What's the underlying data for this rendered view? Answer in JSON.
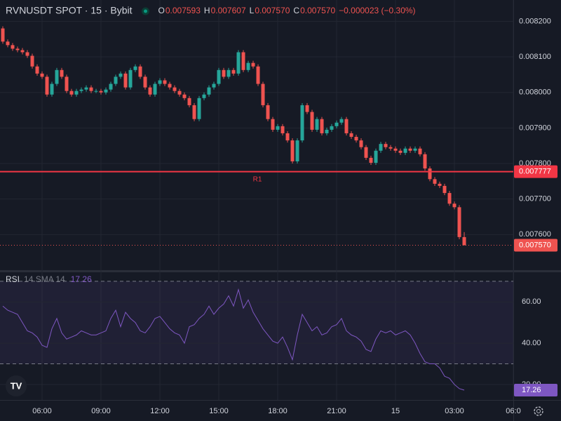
{
  "header": {
    "symbol": "RVNUSDT SPOT · 15 · Bybit",
    "o_label": "O",
    "o": "0.007593",
    "h_label": "H",
    "h": "0.007607",
    "l_label": "L",
    "l": "0.007570",
    "c_label": "C",
    "c": "0.007570",
    "change": "−0.000023 (−0.30%)"
  },
  "chart_data": [
    {
      "type": "candlestick",
      "up_color": "#26a69a",
      "down_color": "#ef5350",
      "grid": true,
      "xlim": [
        3.857,
        30
      ],
      "ylim": [
        0.0075,
        0.00826
      ],
      "xticks": [
        {
          "value": 6,
          "label": "06:00"
        },
        {
          "value": 9,
          "label": "09:00"
        },
        {
          "value": 12,
          "label": "12:00"
        },
        {
          "value": 15,
          "label": "15:00"
        },
        {
          "value": 18,
          "label": "18:00"
        },
        {
          "value": 21,
          "label": "21:00"
        },
        {
          "value": 24,
          "label": "15"
        },
        {
          "value": 27,
          "label": "03:00"
        },
        {
          "value": 30,
          "label": "06:0"
        }
      ],
      "yticks": [
        {
          "value": 0.0076,
          "label": "0.007600"
        },
        {
          "value": 0.0077,
          "label": "0.007700"
        },
        {
          "value": 0.0078,
          "label": "0.007800"
        },
        {
          "value": 0.0079,
          "label": "0.007900"
        },
        {
          "value": 0.008,
          "label": "0.008000"
        },
        {
          "value": 0.0081,
          "label": "0.008100"
        },
        {
          "value": 0.0082,
          "label": "0.008200"
        }
      ],
      "hlines": [
        {
          "name": "R1",
          "value": 0.007777,
          "label": "0.007777",
          "color": "#f23645"
        }
      ],
      "last_price_label": "0.007570",
      "x": [
        4,
        4.25,
        4.5,
        4.75,
        5,
        5.25,
        5.5,
        5.75,
        6,
        6.25,
        6.5,
        6.75,
        7,
        7.25,
        7.5,
        7.75,
        8,
        8.25,
        8.5,
        8.75,
        9,
        9.25,
        9.5,
        9.75,
        10,
        10.25,
        10.5,
        10.75,
        11,
        11.25,
        11.5,
        11.75,
        12,
        12.25,
        12.5,
        12.75,
        13,
        13.25,
        13.5,
        13.75,
        14,
        14.25,
        14.5,
        14.75,
        15,
        15.25,
        15.5,
        15.75,
        16,
        16.25,
        16.5,
        16.75,
        17,
        17.25,
        17.5,
        17.75,
        18,
        18.25,
        18.5,
        18.75,
        19,
        19.25,
        19.5,
        19.75,
        20,
        20.25,
        20.5,
        20.75,
        21,
        21.25,
        21.5,
        21.75,
        22,
        22.25,
        22.5,
        22.75,
        23,
        23.25,
        23.5,
        23.75,
        24,
        24.25,
        24.5,
        24.75,
        25,
        25.25,
        25.5,
        25.75,
        26,
        26.25,
        26.5,
        26.75,
        27,
        27.25,
        27.5
      ],
      "open": [
        0.00818,
        0.008143,
        0.008133,
        0.008123,
        0.008119,
        0.008113,
        0.008103,
        0.008073,
        0.008053,
        0.008044,
        0.007994,
        0.008024,
        0.008063,
        0.008044,
        0.008004,
        0.007994,
        0.008004,
        0.008008,
        0.008014,
        0.008004,
        0.008004,
        0.008,
        0.008008,
        0.008024,
        0.008044,
        0.008053,
        0.008014,
        0.008063,
        0.008073,
        0.008044,
        0.008014,
        0.007994,
        0.008024,
        0.008034,
        0.008024,
        0.008014,
        0.008004,
        0.007994,
        0.007984,
        0.007964,
        0.007925,
        0.007984,
        0.007994,
        0.008014,
        0.008024,
        0.008063,
        0.008044,
        0.008063,
        0.008053,
        0.008113,
        0.008063,
        0.008083,
        0.008073,
        0.008024,
        0.007964,
        0.007925,
        0.007895,
        0.007905,
        0.007885,
        0.007865,
        0.007806,
        0.007865,
        0.007964,
        0.007945,
        0.007895,
        0.007925,
        0.007885,
        0.007895,
        0.007905,
        0.007915,
        0.007925,
        0.007885,
        0.007875,
        0.007865,
        0.007846,
        0.007816,
        0.007802,
        0.007836,
        0.007855,
        0.007846,
        0.007842,
        0.007836,
        0.00783,
        0.007842,
        0.007836,
        0.007842,
        0.007826,
        0.007786,
        0.007756,
        0.007743,
        0.007737,
        0.007717,
        0.007687,
        0.007677,
        0.007593
      ],
      "high": [
        0.008186,
        0.008149,
        0.008139,
        0.008129,
        0.008125,
        0.008119,
        0.008109,
        0.008079,
        0.008059,
        0.00805,
        0.00803,
        0.008069,
        0.008069,
        0.00805,
        0.00801,
        0.00801,
        0.008014,
        0.00802,
        0.00802,
        0.00801,
        0.00801,
        0.008014,
        0.00803,
        0.00805,
        0.008059,
        0.008059,
        0.008069,
        0.008079,
        0.008079,
        0.00805,
        0.00802,
        0.00803,
        0.00804,
        0.00804,
        0.00803,
        0.00802,
        0.00801,
        0.008,
        0.00799,
        0.00797,
        0.00799,
        0.008,
        0.00802,
        0.00803,
        0.008069,
        0.008069,
        0.008069,
        0.008069,
        0.008119,
        0.008119,
        0.008089,
        0.008089,
        0.008079,
        0.00803,
        0.00797,
        0.007931,
        0.007911,
        0.007911,
        0.007891,
        0.007871,
        0.007871,
        0.00797,
        0.00797,
        0.007951,
        0.007931,
        0.007931,
        0.007901,
        0.007911,
        0.007921,
        0.007931,
        0.007931,
        0.007891,
        0.007881,
        0.007871,
        0.007852,
        0.007822,
        0.007842,
        0.007861,
        0.007861,
        0.007852,
        0.007848,
        0.007842,
        0.007848,
        0.007848,
        0.007848,
        0.007848,
        0.007832,
        0.007792,
        0.007762,
        0.007749,
        0.007743,
        0.007723,
        0.007693,
        0.007683,
        0.007607
      ],
      "low": [
        0.008137,
        0.008127,
        0.008117,
        0.008113,
        0.008107,
        0.008097,
        0.008067,
        0.008047,
        0.008038,
        0.007988,
        0.007988,
        0.008018,
        0.008038,
        0.007998,
        0.007988,
        0.007988,
        0.007998,
        0.008002,
        0.007998,
        0.007998,
        0.007994,
        0.007994,
        0.008002,
        0.008018,
        0.008038,
        0.008008,
        0.008008,
        0.008057,
        0.008038,
        0.008008,
        0.007988,
        0.007988,
        0.008018,
        0.008018,
        0.008008,
        0.007998,
        0.007988,
        0.007978,
        0.007958,
        0.007919,
        0.007919,
        0.007978,
        0.007988,
        0.008008,
        0.008018,
        0.008038,
        0.008038,
        0.008047,
        0.008047,
        0.008057,
        0.008057,
        0.008067,
        0.008018,
        0.007958,
        0.007919,
        0.007889,
        0.007889,
        0.007879,
        0.007859,
        0.0078,
        0.0078,
        0.007859,
        0.007939,
        0.007889,
        0.007889,
        0.007879,
        0.007879,
        0.007889,
        0.007899,
        0.007909,
        0.007879,
        0.007869,
        0.007859,
        0.00784,
        0.00781,
        0.007796,
        0.007796,
        0.00783,
        0.00784,
        0.007836,
        0.00783,
        0.007824,
        0.007824,
        0.00783,
        0.00783,
        0.00782,
        0.00778,
        0.00775,
        0.007737,
        0.007731,
        0.007711,
        0.007681,
        0.007671,
        0.007587,
        0.00757
      ],
      "close": [
        0.008143,
        0.008133,
        0.008123,
        0.008119,
        0.008113,
        0.008103,
        0.008073,
        0.008053,
        0.008044,
        0.007994,
        0.008024,
        0.008063,
        0.008044,
        0.008004,
        0.007994,
        0.008004,
        0.008008,
        0.008014,
        0.008004,
        0.008004,
        0.008,
        0.008008,
        0.008024,
        0.008044,
        0.008053,
        0.008014,
        0.008063,
        0.008073,
        0.008044,
        0.008014,
        0.007994,
        0.008024,
        0.008034,
        0.008024,
        0.008014,
        0.008004,
        0.007994,
        0.007984,
        0.007964,
        0.007925,
        0.007984,
        0.007994,
        0.008014,
        0.008024,
        0.008063,
        0.008044,
        0.008063,
        0.008053,
        0.008113,
        0.008063,
        0.008083,
        0.008073,
        0.008024,
        0.007964,
        0.007925,
        0.007895,
        0.007905,
        0.007885,
        0.007865,
        0.007806,
        0.007865,
        0.007964,
        0.007945,
        0.007895,
        0.007925,
        0.007885,
        0.007895,
        0.007905,
        0.007915,
        0.007925,
        0.007885,
        0.007875,
        0.007865,
        0.007846,
        0.007816,
        0.007802,
        0.007836,
        0.007855,
        0.007846,
        0.007842,
        0.007836,
        0.00783,
        0.007842,
        0.007836,
        0.007842,
        0.007826,
        0.007786,
        0.007756,
        0.007743,
        0.007737,
        0.007717,
        0.007687,
        0.007677,
        0.007593,
        0.00757
      ]
    },
    {
      "type": "line",
      "title": "RSI",
      "subtitle": "14 SMA 14",
      "grid": true,
      "xlim": [
        3.857,
        30
      ],
      "ylim": [
        12.5,
        74.4
      ],
      "yticks": [
        {
          "value": 20,
          "label": "20.00"
        },
        {
          "value": 40,
          "label": "40.00"
        },
        {
          "value": 60,
          "label": "60.00"
        }
      ],
      "bands": [
        70,
        30
      ],
      "x": [
        4,
        4.25,
        4.5,
        4.75,
        5,
        5.25,
        5.5,
        5.75,
        6,
        6.25,
        6.5,
        6.75,
        7,
        7.25,
        7.5,
        7.75,
        8,
        8.25,
        8.5,
        8.75,
        9,
        9.25,
        9.5,
        9.75,
        10,
        10.25,
        10.5,
        10.75,
        11,
        11.25,
        11.5,
        11.75,
        12,
        12.25,
        12.5,
        12.75,
        13,
        13.25,
        13.5,
        13.75,
        14,
        14.25,
        14.5,
        14.75,
        15,
        15.25,
        15.5,
        15.75,
        16,
        16.25,
        16.5,
        16.75,
        17,
        17.25,
        17.5,
        17.75,
        18,
        18.25,
        18.5,
        18.75,
        19,
        19.25,
        19.5,
        19.75,
        20,
        20.25,
        20.5,
        20.75,
        21,
        21.25,
        21.5,
        21.75,
        22,
        22.25,
        22.5,
        22.75,
        23,
        23.25,
        23.5,
        23.75,
        24,
        24.25,
        24.5,
        24.75,
        25,
        25.25,
        25.5,
        25.75,
        26,
        26.25,
        26.5,
        26.75,
        27,
        27.25,
        27.5
      ],
      "series": [
        {
          "name": "RSI",
          "color": "#7e57c2",
          "value_label": "17.26",
          "values": [
            58,
            56,
            55,
            54,
            50,
            46,
            45,
            43,
            39,
            38,
            47,
            52,
            45,
            42,
            43,
            44,
            46,
            45,
            44,
            44,
            45,
            46,
            52,
            56,
            48,
            55,
            52,
            50,
            46,
            45,
            48,
            52,
            53,
            50,
            47,
            45,
            44,
            40,
            48,
            49,
            52,
            54,
            58,
            54,
            57,
            59,
            63,
            58,
            66,
            57,
            61,
            55,
            51,
            47,
            44,
            41,
            40,
            43,
            38,
            32,
            44,
            54,
            50,
            46,
            48,
            44,
            45,
            48,
            49,
            52,
            46,
            44,
            43,
            41,
            37,
            36,
            42,
            46,
            45,
            46,
            44,
            45,
            46,
            44,
            40,
            35,
            31,
            30,
            30,
            28,
            24,
            23,
            20,
            18,
            17.26
          ]
        }
      ]
    }
  ]
}
